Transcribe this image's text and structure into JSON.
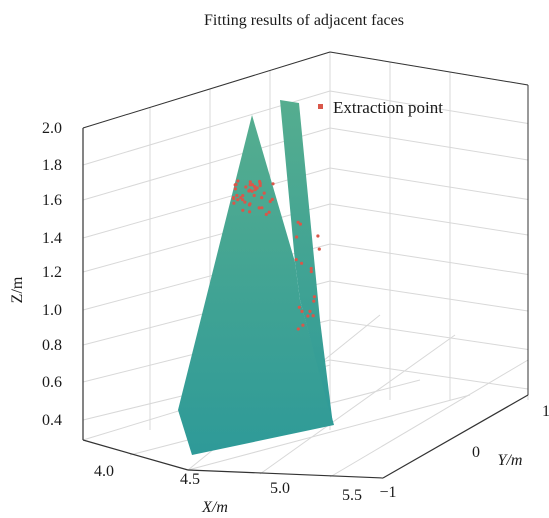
{
  "chart_data": {
    "type": "scatter",
    "title": "Fitting results of adjacent faces",
    "xlabel": "X/m",
    "ylabel": "Y/m",
    "zlabel": "Z/m",
    "x_ticks": [
      "4.0",
      "4.5",
      "5.0",
      "5.5"
    ],
    "y_ticks": [
      "−1",
      "0",
      "1"
    ],
    "z_ticks": [
      "2.0",
      "1.8",
      "1.6",
      "1.4",
      "1.2",
      "1.0",
      "0.8",
      "0.6",
      "0.4"
    ],
    "grid": true,
    "legend": {
      "position": "top-right",
      "entries": [
        "Extraction point"
      ]
    },
    "colors": {
      "surface_top": "#4ea990",
      "surface_bottom": "#2f9a97",
      "points": "#d9574a",
      "grid": "#d8d8d8",
      "axis": "#333333"
    },
    "series": [
      {
        "name": "Extraction point",
        "type": "scatter",
        "count": 60
      }
    ]
  }
}
